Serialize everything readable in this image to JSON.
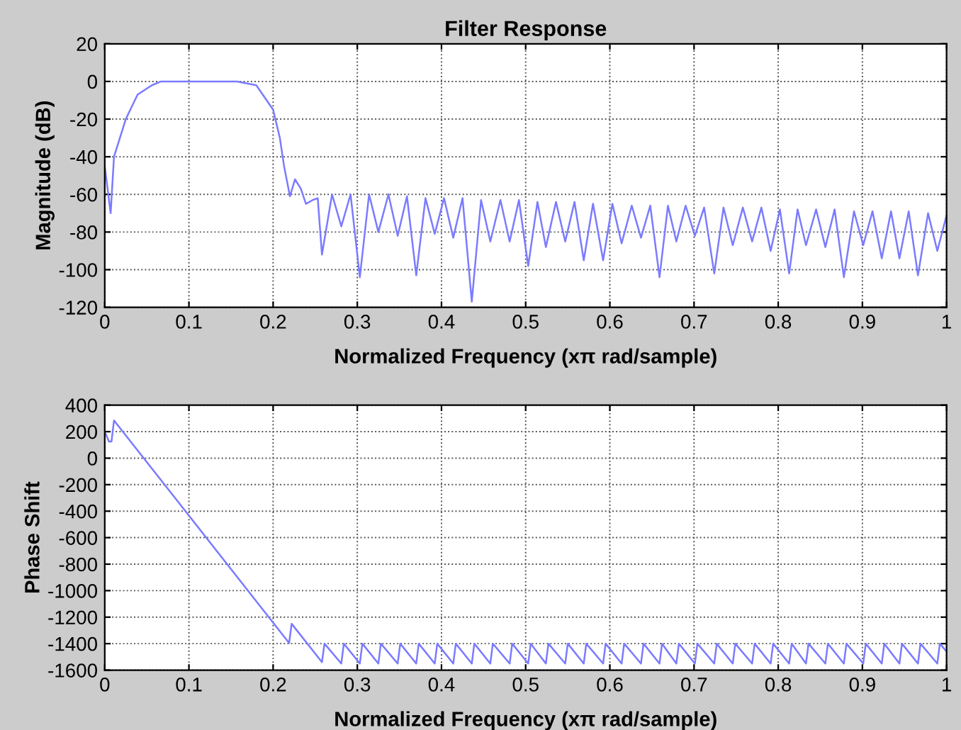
{
  "chart_data": [
    {
      "type": "line",
      "title": "Filter Response",
      "xlabel": "Normalized Frequency (xπ rad/sample)",
      "ylabel": "Magnitude (dB)",
      "grid": true,
      "line_style": "solid",
      "xlim": [
        0,
        1
      ],
      "xticks": [
        0,
        0.1,
        0.2,
        0.3,
        0.4,
        0.5,
        0.6,
        0.7,
        0.8,
        0.9,
        1
      ],
      "ylim": [
        -120,
        20
      ],
      "yticks": [
        -120,
        -100,
        -80,
        -60,
        -40,
        -20,
        0,
        20
      ],
      "series": [
        {
          "color": "#7b7bff",
          "x": [
            0,
            0.007,
            0.011,
            0.025,
            0.039,
            0.056,
            0.067,
            0.157,
            0.18,
            0.2,
            0.208,
            0.213,
            0.22,
            0.226,
            0.233,
            0.239,
            0.247,
            0.253,
            0.258,
            0.27,
            0.281,
            0.292,
            0.303,
            0.314,
            0.325,
            0.337,
            0.348,
            0.359,
            0.37,
            0.381,
            0.392,
            0.403,
            0.414,
            0.425,
            0.436,
            0.447,
            0.458,
            0.47,
            0.481,
            0.492,
            0.503,
            0.514,
            0.524,
            0.536,
            0.547,
            0.558,
            0.569,
            0.58,
            0.592,
            0.603,
            0.614,
            0.626,
            0.637,
            0.648,
            0.659,
            0.669,
            0.679,
            0.69,
            0.701,
            0.712,
            0.724,
            0.735,
            0.746,
            0.758,
            0.769,
            0.78,
            0.791,
            0.802,
            0.813,
            0.823,
            0.833,
            0.845,
            0.856,
            0.867,
            0.878,
            0.89,
            0.901,
            0.912,
            0.923,
            0.934,
            0.944,
            0.955,
            0.966,
            0.978,
            0.989,
            1.0
          ],
          "values": [
            -45,
            -70,
            -40,
            -20,
            -7,
            -2,
            0,
            0,
            -2,
            -15,
            -30,
            -45,
            -61,
            -52,
            -57,
            -65,
            -63,
            -62,
            -92,
            -60,
            -77,
            -60,
            -104,
            -60,
            -80,
            -60,
            -82,
            -61,
            -103,
            -62,
            -81,
            -62,
            -83,
            -62,
            -117,
            -63,
            -85,
            -63,
            -85,
            -63,
            -98,
            -64,
            -88,
            -64,
            -85,
            -64,
            -95,
            -65,
            -95,
            -65,
            -86,
            -66,
            -83,
            -66,
            -104,
            -66,
            -85,
            -66,
            -82,
            -67,
            -102,
            -67,
            -87,
            -67,
            -85,
            -67,
            -90,
            -68,
            -102,
            -68,
            -87,
            -68,
            -88,
            -68,
            -104,
            -69,
            -87,
            -69,
            -94,
            -69,
            -94,
            -69,
            -103,
            -70,
            -90,
            -71
          ]
        }
      ]
    },
    {
      "type": "line",
      "xlabel": "Normalized Frequency (xπ rad/sample)",
      "ylabel": "Phase Shift",
      "grid": true,
      "line_style": "solid",
      "xlim": [
        0,
        1
      ],
      "xticks": [
        0,
        0.1,
        0.2,
        0.3,
        0.4,
        0.5,
        0.6,
        0.7,
        0.8,
        0.9,
        1
      ],
      "ylim": [
        -1600,
        400
      ],
      "yticks": [
        -1600,
        -1400,
        -1200,
        -1000,
        -800,
        -600,
        -400,
        -200,
        0,
        200,
        400
      ],
      "series": [
        {
          "color": "#7b7bff",
          "x": [
            0,
            0.005,
            0.008,
            0.011,
            0.219,
            0.222,
            0.258,
            0.261,
            0.281,
            0.284,
            0.303,
            0.306,
            0.325,
            0.328,
            0.348,
            0.351,
            0.37,
            0.373,
            0.392,
            0.395,
            0.414,
            0.417,
            0.436,
            0.439,
            0.458,
            0.461,
            0.481,
            0.484,
            0.503,
            0.506,
            0.524,
            0.527,
            0.547,
            0.55,
            0.569,
            0.572,
            0.592,
            0.595,
            0.614,
            0.617,
            0.637,
            0.64,
            0.659,
            0.662,
            0.679,
            0.682,
            0.701,
            0.704,
            0.724,
            0.727,
            0.746,
            0.749,
            0.769,
            0.772,
            0.791,
            0.794,
            0.813,
            0.816,
            0.833,
            0.836,
            0.856,
            0.859,
            0.878,
            0.881,
            0.901,
            0.904,
            0.923,
            0.926,
            0.944,
            0.947,
            0.966,
            0.969,
            0.989,
            0.992,
            1.0
          ],
          "values": [
            200,
            125,
            125,
            285,
            -1395,
            -1250,
            -1540,
            -1400,
            -1550,
            -1400,
            -1550,
            -1400,
            -1550,
            -1400,
            -1550,
            -1400,
            -1550,
            -1400,
            -1550,
            -1400,
            -1550,
            -1400,
            -1550,
            -1400,
            -1550,
            -1400,
            -1550,
            -1400,
            -1550,
            -1400,
            -1550,
            -1400,
            -1550,
            -1400,
            -1550,
            -1400,
            -1550,
            -1400,
            -1550,
            -1400,
            -1550,
            -1400,
            -1550,
            -1400,
            -1550,
            -1400,
            -1550,
            -1400,
            -1550,
            -1400,
            -1550,
            -1400,
            -1550,
            -1400,
            -1550,
            -1400,
            -1550,
            -1400,
            -1550,
            -1400,
            -1550,
            -1400,
            -1550,
            -1400,
            -1550,
            -1400,
            -1550,
            -1400,
            -1550,
            -1400,
            -1550,
            -1400,
            -1550,
            -1400,
            -1460
          ]
        }
      ]
    }
  ]
}
